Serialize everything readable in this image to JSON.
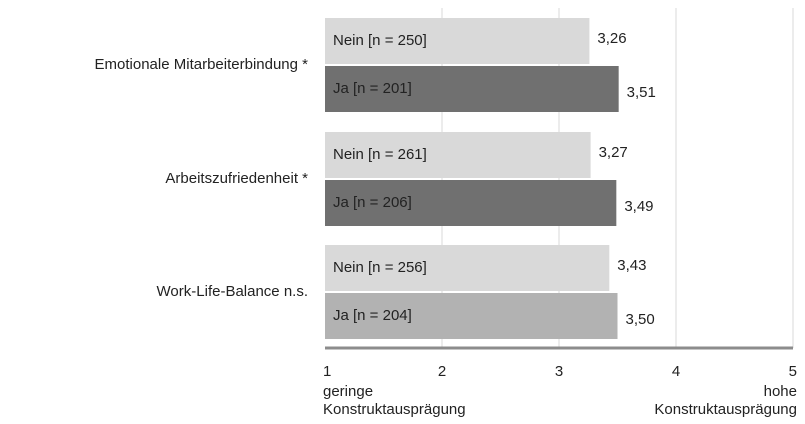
{
  "chart_data": {
    "type": "bar",
    "orientation": "horizontal",
    "categories": [
      "Emotionale Mitarbeiterbindung *",
      "Arbeitszufriedenheit *",
      "Work-Life-Balance n.s."
    ],
    "series": [
      {
        "name": "Nein",
        "color": "#d9d9d9",
        "colors": [
          "#d9d9d9",
          "#d9d9d9",
          "#d9d9d9"
        ],
        "label_color": "#7f7f7f",
        "bar_labels": [
          "Nein [n = 250]",
          "Nein [n = 261]",
          "Nein [n = 256]"
        ],
        "values": [
          3.26,
          3.27,
          3.43
        ],
        "value_labels": [
          "3,26",
          "3,27",
          "3,43"
        ]
      },
      {
        "name": "Ja",
        "color": "#707070",
        "colors": [
          "#707070",
          "#707070",
          "#b2b2b2"
        ],
        "label_color": "#ffffff",
        "bar_labels": [
          "Ja [n = 201]",
          "Ja [n = 206]",
          "Ja [n = 204]"
        ],
        "values": [
          3.51,
          3.49,
          3.5
        ],
        "value_labels": [
          "3,51",
          "3,49",
          "3,50"
        ]
      }
    ],
    "xlim": [
      1,
      5
    ],
    "xticks": [
      1,
      2,
      3,
      4,
      5
    ],
    "grid": true,
    "x_label_low": [
      "geringe",
      "Konstruktausprägung"
    ],
    "x_label_high": [
      "hohe",
      "Konstruktausprägung"
    ]
  }
}
